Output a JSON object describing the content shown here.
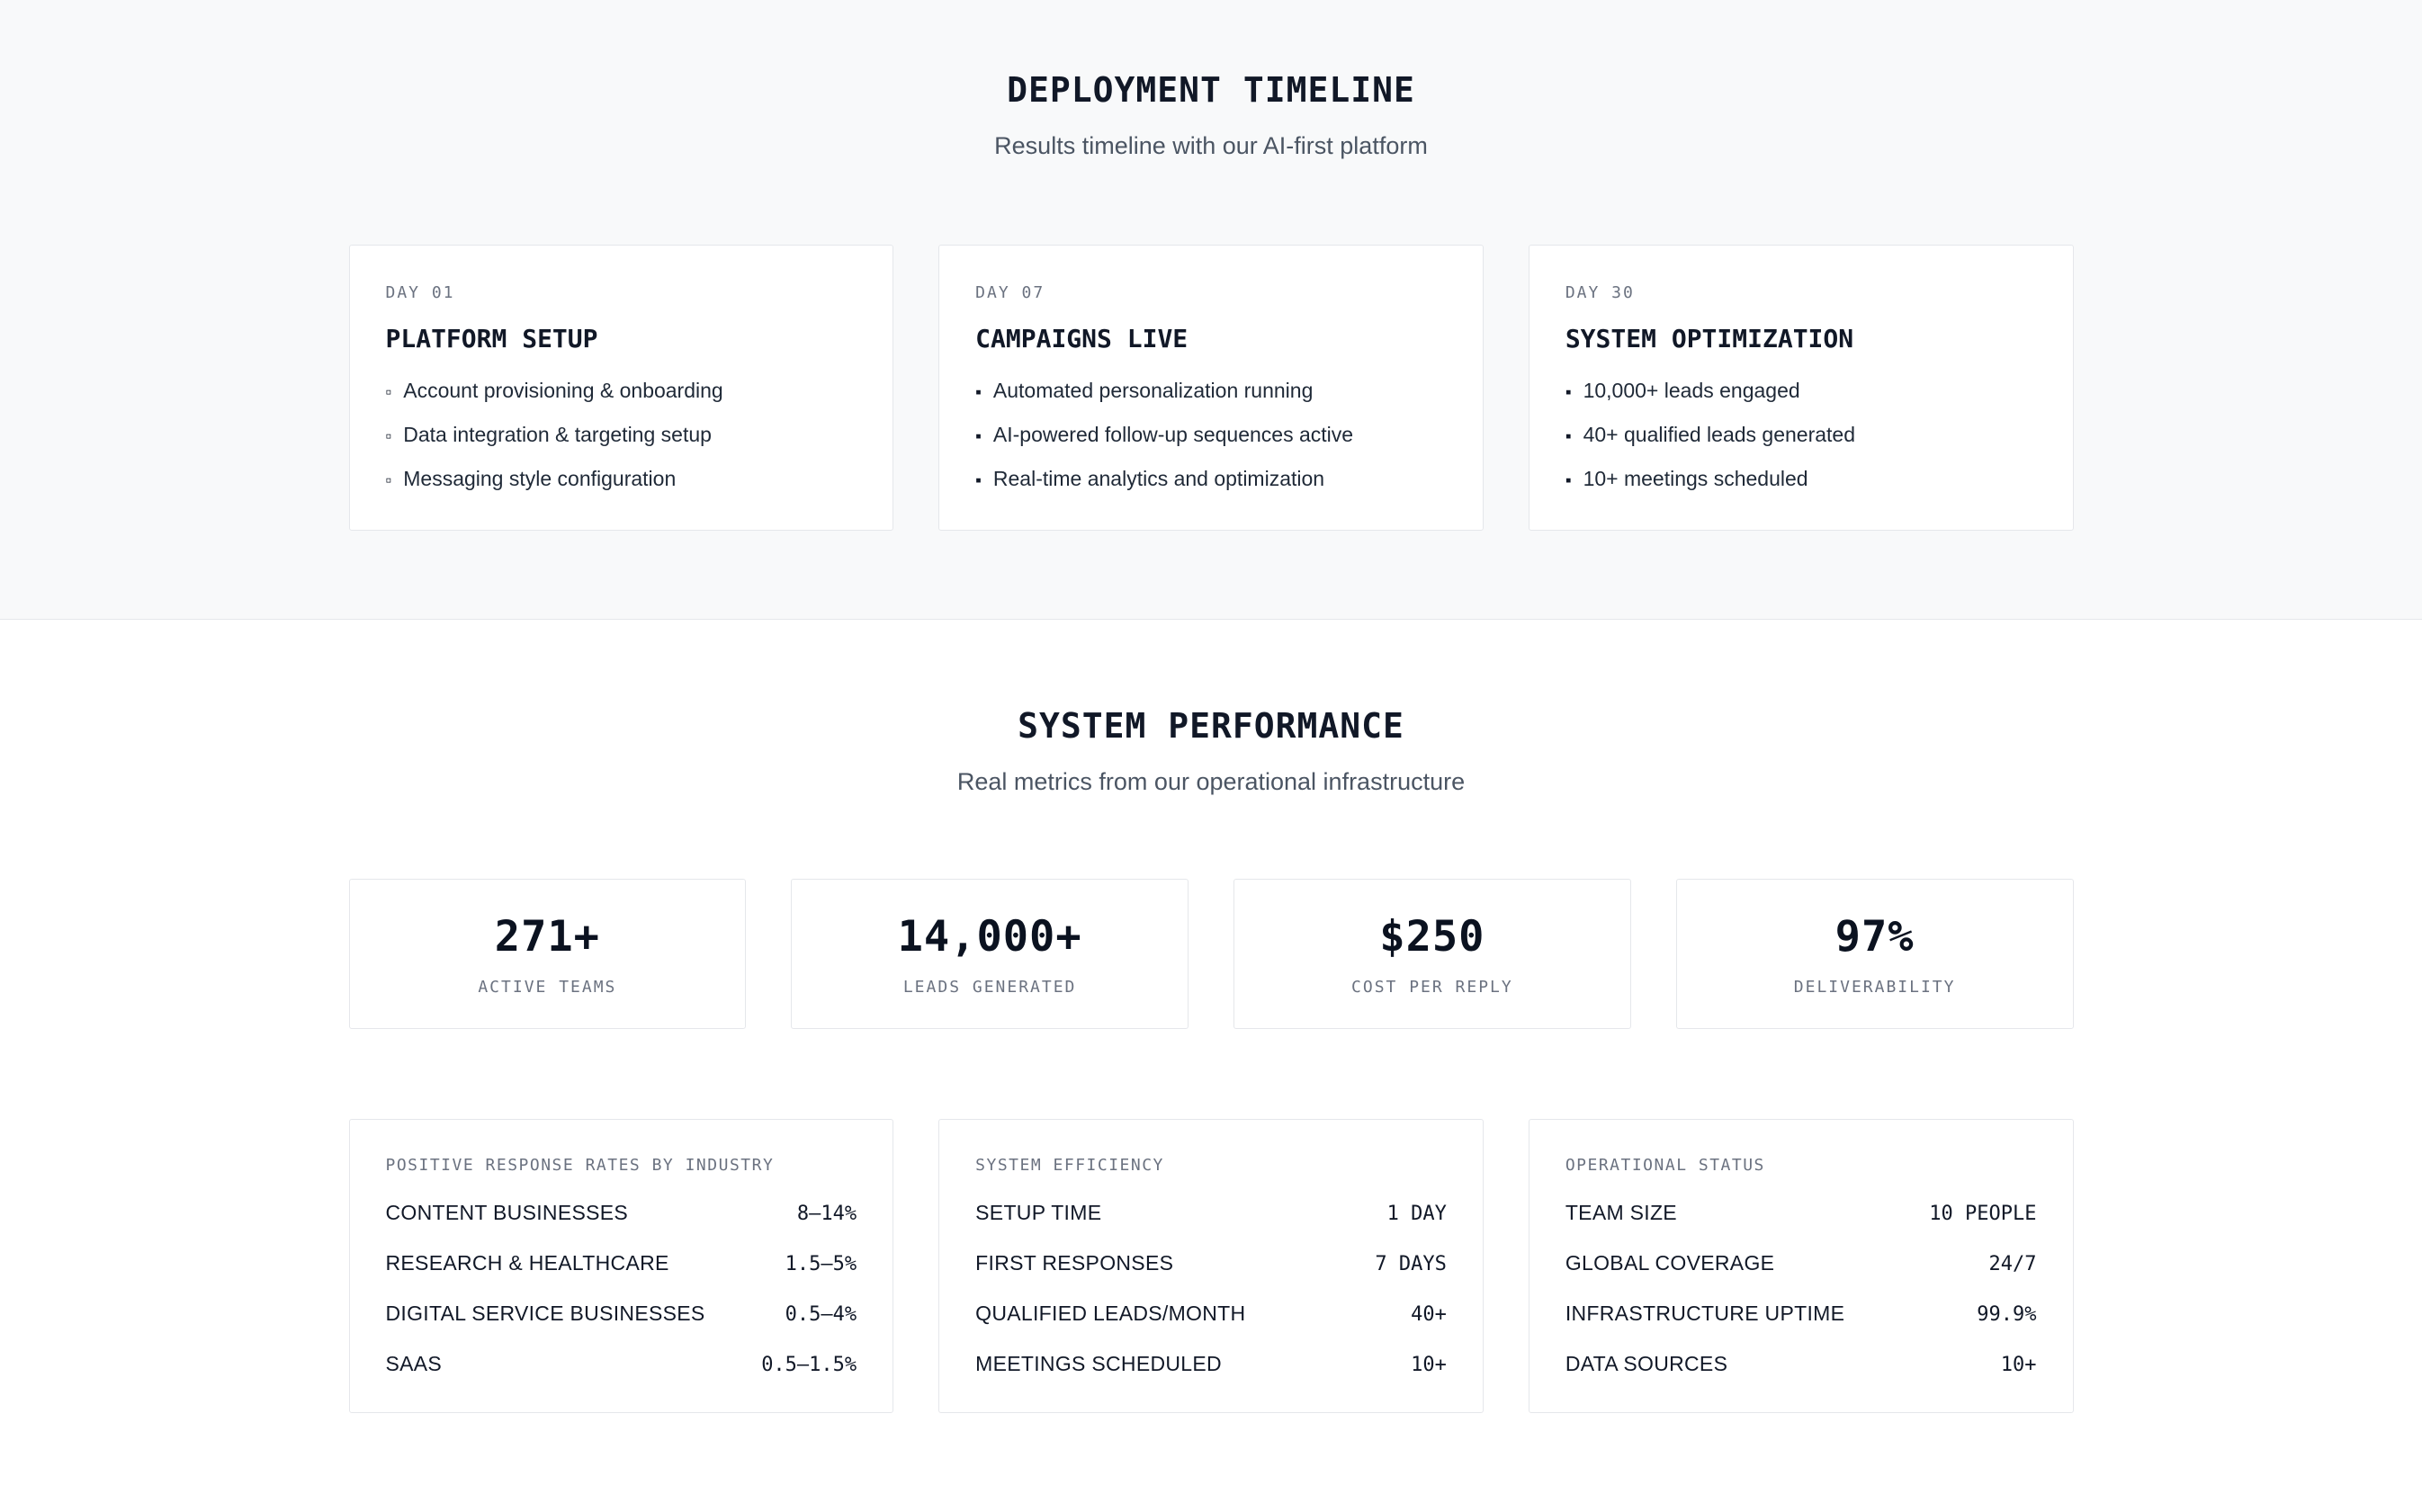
{
  "colors": {
    "timeline_bg": "#f8f9fa",
    "card_border": "#e5e7eb",
    "muted_text": "#6b7280",
    "primary_text": "#111827"
  },
  "timeline": {
    "title": "DEPLOYMENT TIMELINE",
    "subtitle": "Results timeline with our AI-first platform",
    "cards": [
      {
        "day": "DAY 01",
        "title": "PLATFORM SETUP",
        "bullet": "▫",
        "items": [
          "Account provisioning & onboarding",
          "Data integration & targeting setup",
          "Messaging style configuration"
        ]
      },
      {
        "day": "DAY 07",
        "title": "CAMPAIGNS LIVE",
        "bullet": "▪",
        "items": [
          "Automated personalization running",
          "AI-powered follow-up sequences active",
          "Real-time analytics and optimization"
        ]
      },
      {
        "day": "DAY 30",
        "title": "SYSTEM OPTIMIZATION",
        "bullet": "▪",
        "items": [
          "10,000+ leads engaged",
          "40+ qualified leads generated",
          "10+ meetings scheduled"
        ]
      }
    ]
  },
  "performance": {
    "title": "SYSTEM PERFORMANCE",
    "subtitle": "Real metrics from our operational infrastructure",
    "stats": [
      {
        "value": "271+",
        "label": "ACTIVE TEAMS"
      },
      {
        "value": "14,000+",
        "label": "LEADS GENERATED"
      },
      {
        "value": "$250",
        "label": "COST PER REPLY"
      },
      {
        "value": "97%",
        "label": "DELIVERABILITY"
      }
    ],
    "panels": [
      {
        "title": "POSITIVE RESPONSE RATES BY INDUSTRY",
        "rows": [
          {
            "label": "CONTENT BUSINESSES",
            "value": "8–14%"
          },
          {
            "label": "RESEARCH & HEALTHCARE",
            "value": "1.5–5%"
          },
          {
            "label": "DIGITAL SERVICE BUSINESSES",
            "value": "0.5–4%"
          },
          {
            "label": "SAAS",
            "value": "0.5–1.5%"
          }
        ]
      },
      {
        "title": "SYSTEM EFFICIENCY",
        "rows": [
          {
            "label": "SETUP TIME",
            "value": "1 DAY"
          },
          {
            "label": "FIRST RESPONSES",
            "value": "7 DAYS"
          },
          {
            "label": "QUALIFIED LEADS/MONTH",
            "value": "40+"
          },
          {
            "label": "MEETINGS SCHEDULED",
            "value": "10+"
          }
        ]
      },
      {
        "title": "OPERATIONAL STATUS",
        "rows": [
          {
            "label": "TEAM SIZE",
            "value": "10 PEOPLE"
          },
          {
            "label": "GLOBAL COVERAGE",
            "value": "24/7"
          },
          {
            "label": "INFRASTRUCTURE UPTIME",
            "value": "99.9%"
          },
          {
            "label": "DATA SOURCES",
            "value": "10+"
          }
        ]
      }
    ]
  }
}
